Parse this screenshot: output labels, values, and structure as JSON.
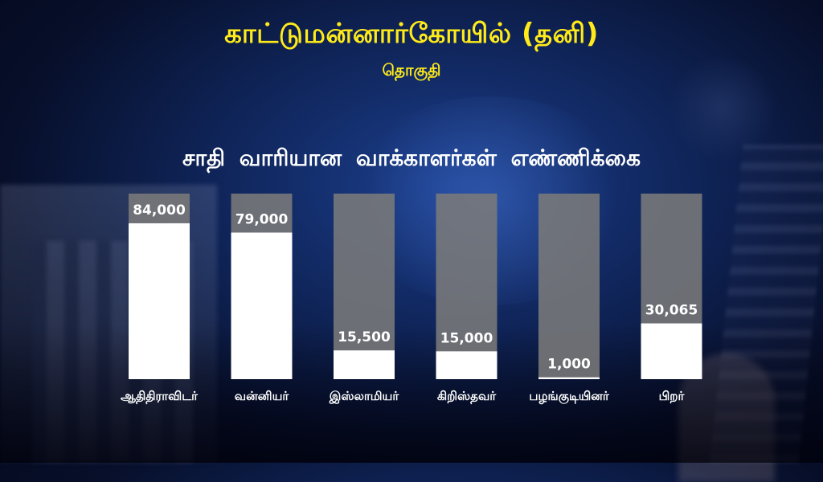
{
  "header": {
    "title": "காட்டுமன்னார்கோயில் (தனி)",
    "subtitle": "தொகுதி"
  },
  "chart_data": {
    "type": "bar",
    "title": "சாதி வாரியான வாக்காளர்கள் எண்ணிக்கை",
    "categories": [
      "ஆதிதிராவிடர்",
      "வன்னியர்",
      "இஸ்லாமியர்",
      "கிறிஸ்தவர்",
      "பழங்குடியினர்",
      "பிறர்"
    ],
    "values": [
      84000,
      79000,
      15500,
      15000,
      1000,
      30065
    ],
    "value_labels": [
      "84,000",
      "79,000",
      "15,500",
      "15,000",
      "1,000",
      "30,065"
    ],
    "ylim": [
      0,
      100000
    ],
    "grid": false,
    "colors": {
      "fill": "#ffffff",
      "track": "#7a7a7a",
      "label": "#ffffff",
      "title": "#ffeb1a"
    }
  }
}
